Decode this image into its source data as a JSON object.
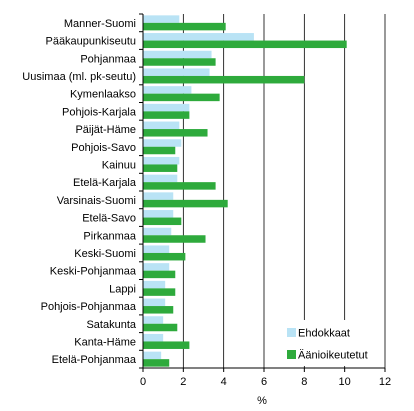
{
  "colors": {
    "Ehdokkaat": "#b9e3f5",
    "Äänioikeutetut": "#2eaa3c",
    "grid": "#000000",
    "axis": "#000000"
  },
  "chart_data": {
    "type": "bar",
    "orientation": "horizontal",
    "categories": [
      "Manner-Suomi",
      "Pääkaupunkiseutu",
      "Pohjanmaa",
      "Uusimaa (ml. pk-seutu)",
      "Kymenlaakso",
      "Pohjois-Karjala",
      "Päijät-Häme",
      "Pohjois-Savo",
      "Kainuu",
      "Etelä-Karjala",
      "Varsinais-Suomi",
      "Etelä-Savo",
      "Pirkanmaa",
      "Keski-Suomi",
      "Keski-Pohjanmaa",
      "Lappi",
      "Pohjois-Pohjanmaa",
      "Satakunta",
      "Kanta-Häme",
      "Etelä-Pohjanmaa"
    ],
    "series": [
      {
        "name": "Ehdokkaat",
        "values": [
          1.8,
          5.5,
          3.4,
          3.3,
          2.4,
          2.3,
          1.8,
          1.9,
          1.8,
          1.7,
          1.5,
          1.5,
          1.4,
          1.3,
          1.3,
          1.1,
          1.1,
          1.0,
          1.0,
          0.9
        ]
      },
      {
        "name": "Äänioikeutetut",
        "values": [
          4.1,
          10.1,
          3.6,
          8.0,
          3.8,
          2.3,
          3.2,
          1.6,
          1.7,
          3.6,
          4.2,
          1.9,
          3.1,
          2.1,
          1.6,
          1.6,
          1.5,
          1.7,
          2.3,
          1.3
        ]
      }
    ],
    "x_ticks": [
      "0",
      "2",
      "4",
      "6",
      "8",
      "10",
      "12"
    ],
    "xlabel": "%",
    "xlim": [
      0,
      12
    ],
    "grid": true,
    "legend": "bottom-right"
  }
}
